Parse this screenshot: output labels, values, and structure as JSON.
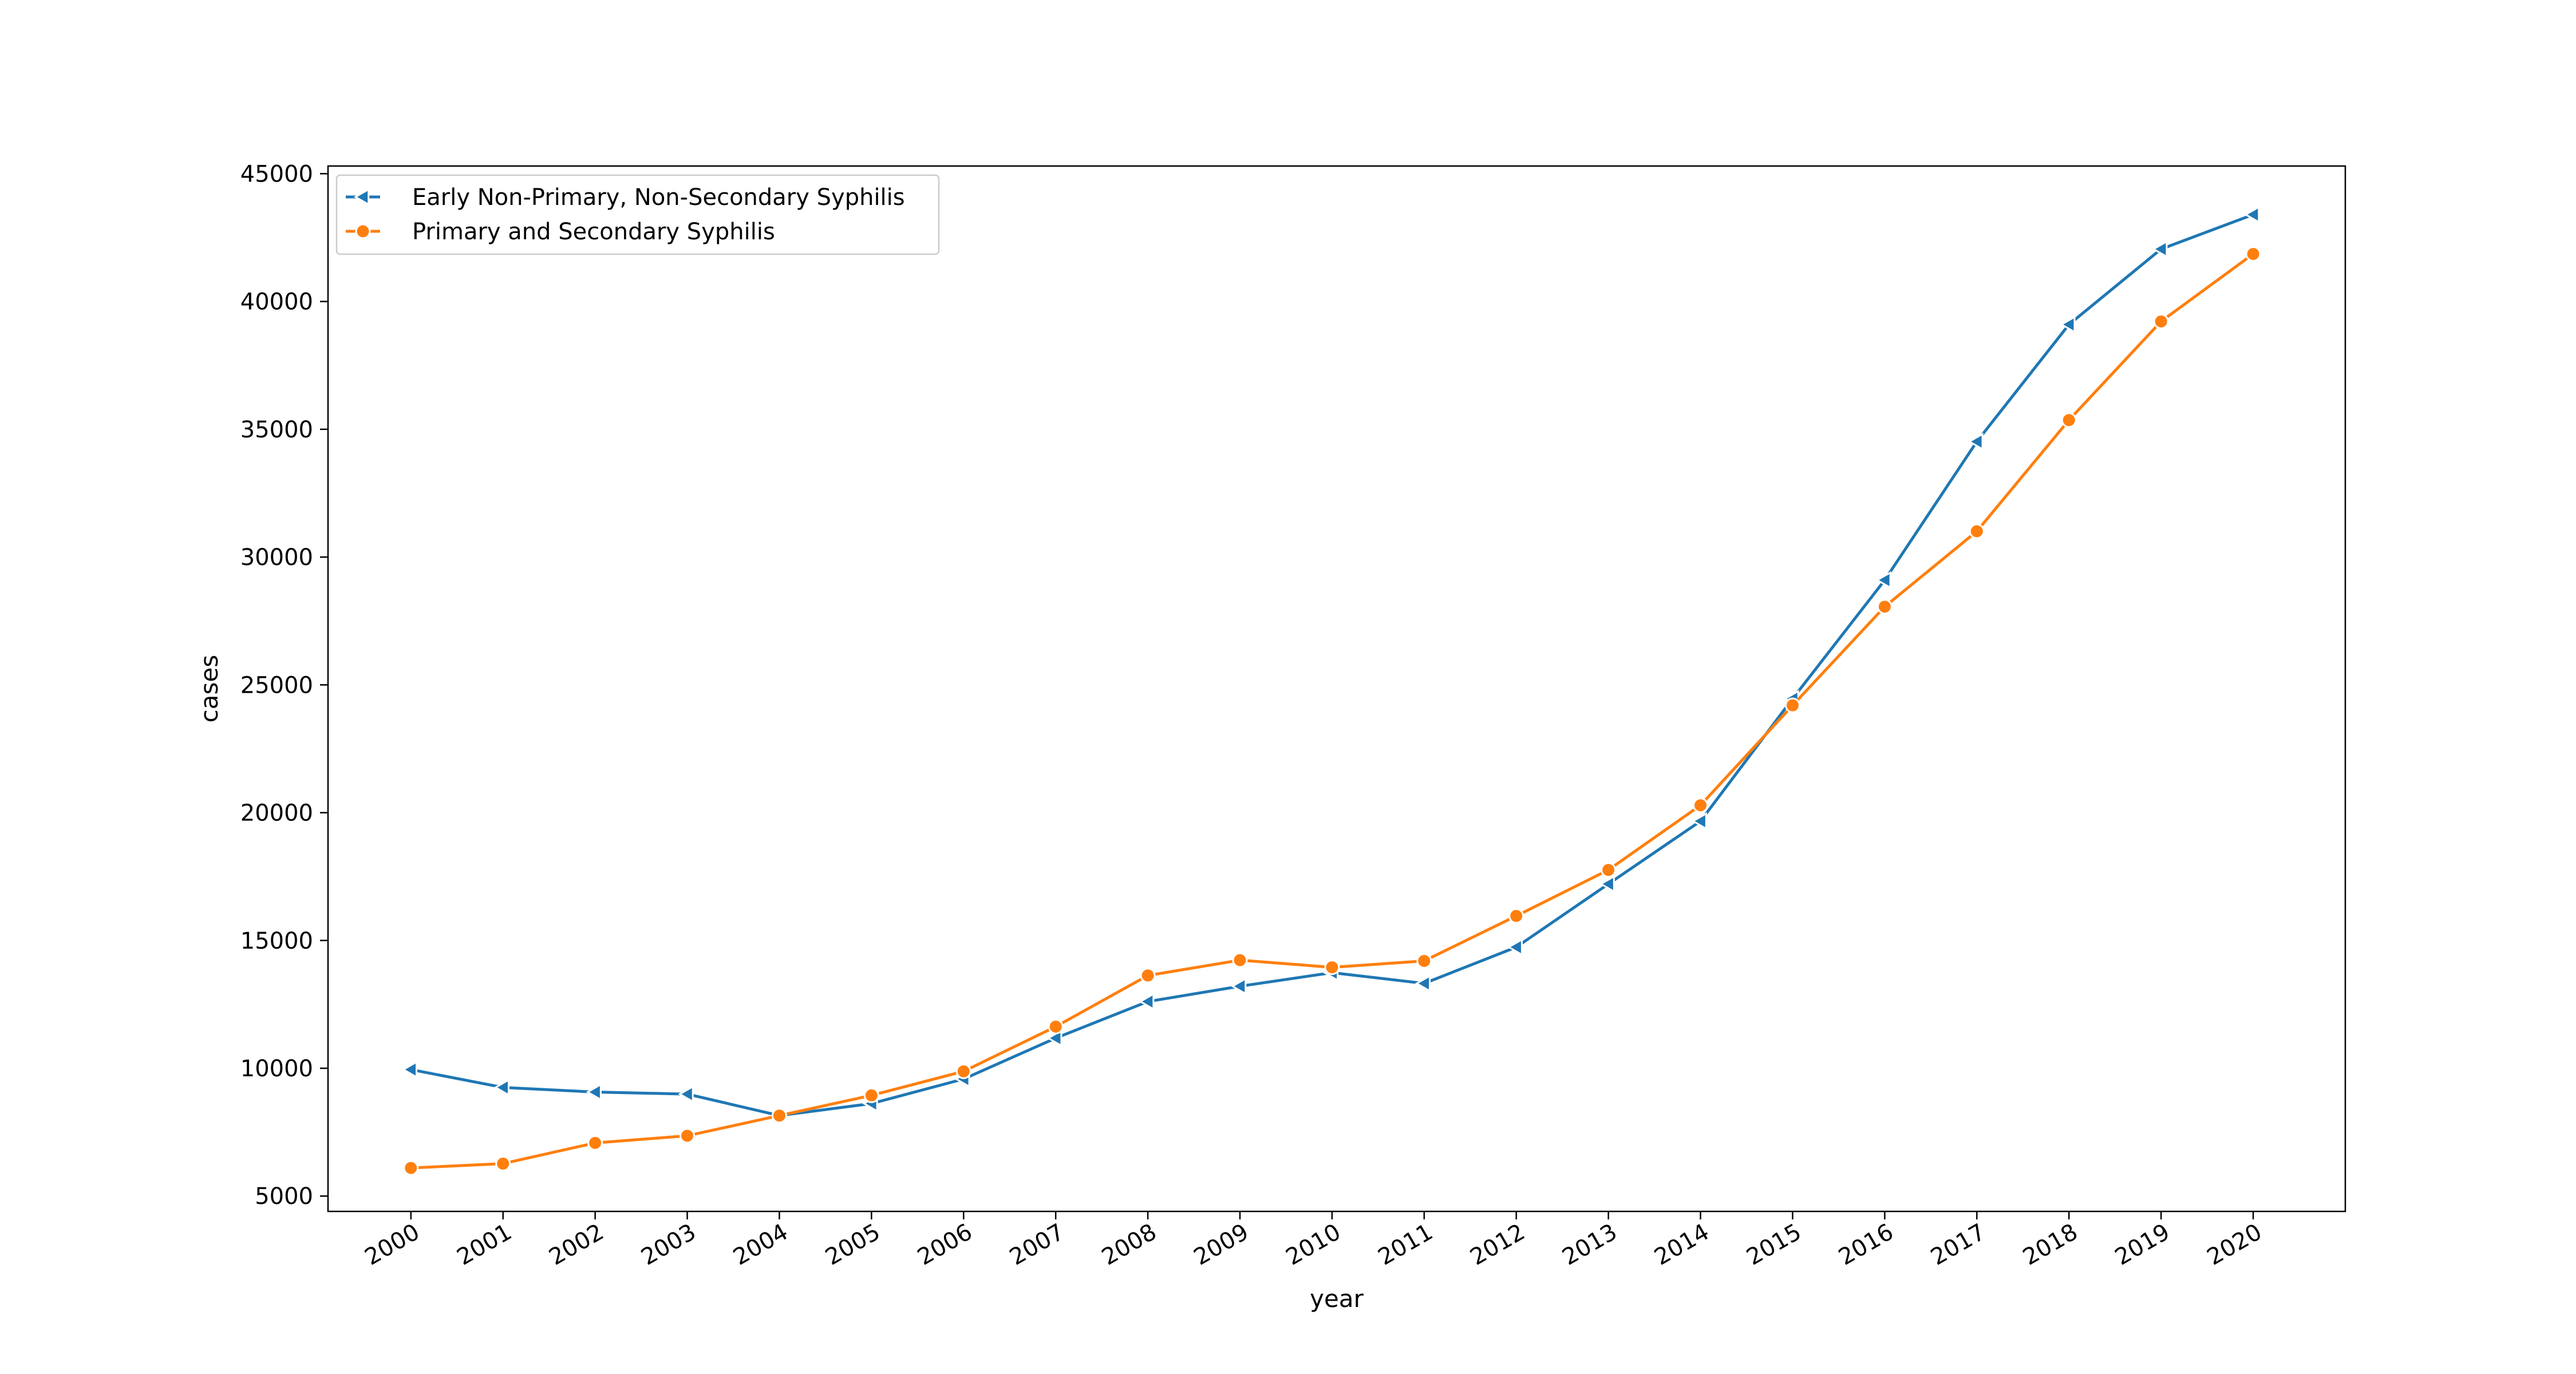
{
  "chart_data": {
    "type": "line",
    "title": "",
    "xlabel": "year",
    "ylabel": "cases",
    "x": [
      2000,
      2001,
      2002,
      2003,
      2004,
      2005,
      2006,
      2007,
      2008,
      2009,
      2010,
      2011,
      2012,
      2013,
      2014,
      2015,
      2016,
      2017,
      2018,
      2019,
      2020
    ],
    "x_tick_labels": [
      "2000",
      "2001",
      "2002",
      "2003",
      "2004",
      "2005",
      "2006",
      "2007",
      "2008",
      "2009",
      "2010",
      "2011",
      "2012",
      "2013",
      "2014",
      "2015",
      "2016",
      "2017",
      "2018",
      "2019",
      "2020"
    ],
    "y_ticks": [
      5000,
      10000,
      15000,
      20000,
      25000,
      30000,
      35000,
      40000,
      45000
    ],
    "y_tick_labels": [
      "5000",
      "10000",
      "15000",
      "20000",
      "25000",
      "30000",
      "35000",
      "40000",
      "45000"
    ],
    "xlim": [
      1999.1,
      2021.0
    ],
    "ylim": [
      4400,
      45300
    ],
    "grid": false,
    "legend_position": "top-left",
    "series": [
      {
        "name": "Early Non-Primary, Non-Secondary Syphilis",
        "color": "#1f77b4",
        "marker": "triangle-left",
        "values": [
          9950,
          9250,
          9070,
          8990,
          8150,
          8620,
          9580,
          11180,
          12610,
          13210,
          13740,
          13320,
          14740,
          17210,
          19670,
          24460,
          29100,
          34520,
          39100,
          42050,
          43400
        ]
      },
      {
        "name": "Primary and Secondary Syphilis",
        "color": "#ff7f0e",
        "marker": "circle",
        "values": [
          6100,
          6270,
          7080,
          7360,
          8150,
          8940,
          9880,
          11630,
          13630,
          14230,
          13950,
          14200,
          15960,
          17760,
          20290,
          24200,
          28060,
          31010,
          35360,
          39220,
          41860
        ]
      }
    ]
  }
}
